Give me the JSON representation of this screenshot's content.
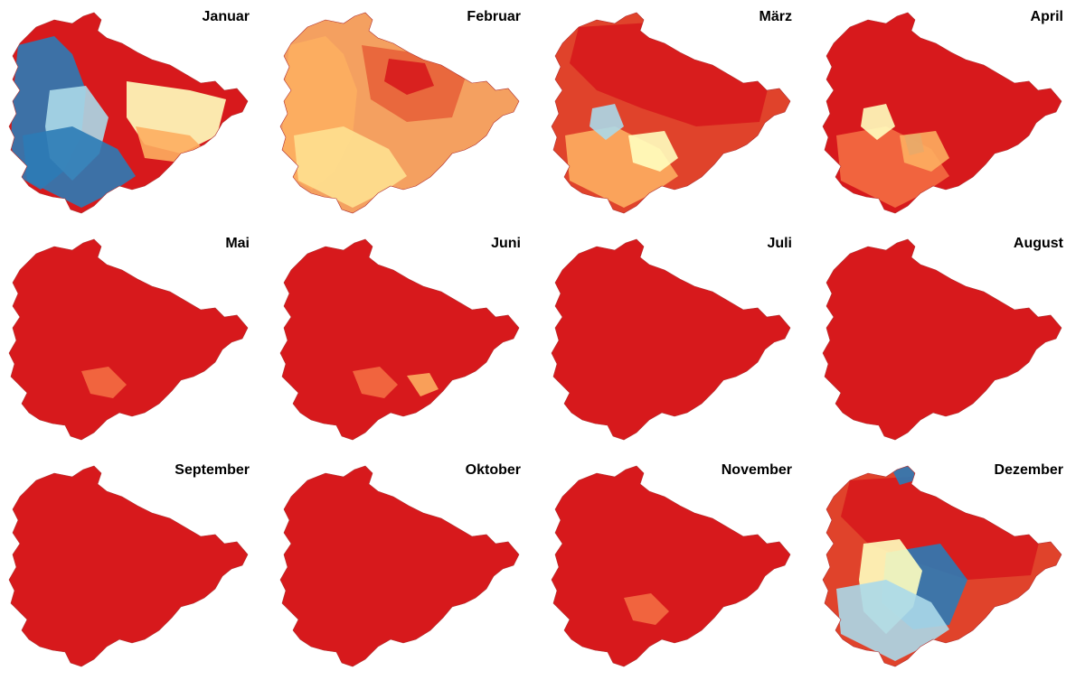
{
  "figure": {
    "panels": [
      {
        "id": "jan",
        "label": "Januar",
        "base": "#d7191c",
        "patches": [
          {
            "color": "#2c7bb6",
            "shape": "west-big"
          },
          {
            "color": "#abd9e9",
            "shape": "west-edge"
          },
          {
            "color": "#ffffbf",
            "shape": "east-mid"
          },
          {
            "color": "#fdae61",
            "shape": "east-lower"
          },
          {
            "color": "#2c7bb6",
            "shape": "south-west"
          }
        ]
      },
      {
        "id": "feb",
        "label": "Februar",
        "base": "#f4a060",
        "patches": [
          {
            "color": "#fdae61",
            "shape": "west-big"
          },
          {
            "color": "#e8623a",
            "shape": "center-north"
          },
          {
            "color": "#d7191c",
            "shape": "center-small"
          },
          {
            "color": "#fee090",
            "shape": "south-west"
          }
        ]
      },
      {
        "id": "mar",
        "label": "März",
        "base": "#e0432b",
        "patches": [
          {
            "color": "#d7191c",
            "shape": "north-big"
          },
          {
            "color": "#fdae61",
            "shape": "south-west"
          },
          {
            "color": "#abd9e9",
            "shape": "spot-a"
          },
          {
            "color": "#ffffbf",
            "shape": "spot-b"
          }
        ]
      },
      {
        "id": "apr",
        "label": "April",
        "base": "#d7191c",
        "patches": [
          {
            "color": "#f46d43",
            "shape": "south-west"
          },
          {
            "color": "#ffffbf",
            "shape": "spot-a"
          },
          {
            "color": "#2c7bb6",
            "shape": "spot-c"
          },
          {
            "color": "#fdae61",
            "shape": "spot-b"
          }
        ]
      },
      {
        "id": "may",
        "label": "Mai",
        "base": "#d7191c",
        "patches": [
          {
            "color": "#f46d43",
            "shape": "spot-d"
          }
        ]
      },
      {
        "id": "jun",
        "label": "Juni",
        "base": "#d7191c",
        "patches": [
          {
            "color": "#f46d43",
            "shape": "spot-d"
          },
          {
            "color": "#fdae61",
            "shape": "spot-e"
          }
        ]
      },
      {
        "id": "jul",
        "label": "Juli",
        "base": "#d7191c",
        "patches": []
      },
      {
        "id": "aug",
        "label": "August",
        "base": "#d7191c",
        "patches": []
      },
      {
        "id": "sep",
        "label": "September",
        "base": "#d7191c",
        "patches": []
      },
      {
        "id": "oct",
        "label": "Oktober",
        "base": "#d7191c",
        "patches": []
      },
      {
        "id": "nov",
        "label": "November",
        "base": "#d7191c",
        "patches": [
          {
            "color": "#f46d43",
            "shape": "spot-d"
          }
        ]
      },
      {
        "id": "dec",
        "label": "Dezember",
        "base": "#e0432b",
        "patches": [
          {
            "color": "#d7191c",
            "shape": "north-big"
          },
          {
            "color": "#2c7bb6",
            "shape": "spot-f"
          },
          {
            "color": "#ffffbf",
            "shape": "west-edge"
          },
          {
            "color": "#abd9e9",
            "shape": "south-west"
          },
          {
            "color": "#2c7bb6",
            "shape": "north-tip"
          }
        ]
      }
    ]
  }
}
